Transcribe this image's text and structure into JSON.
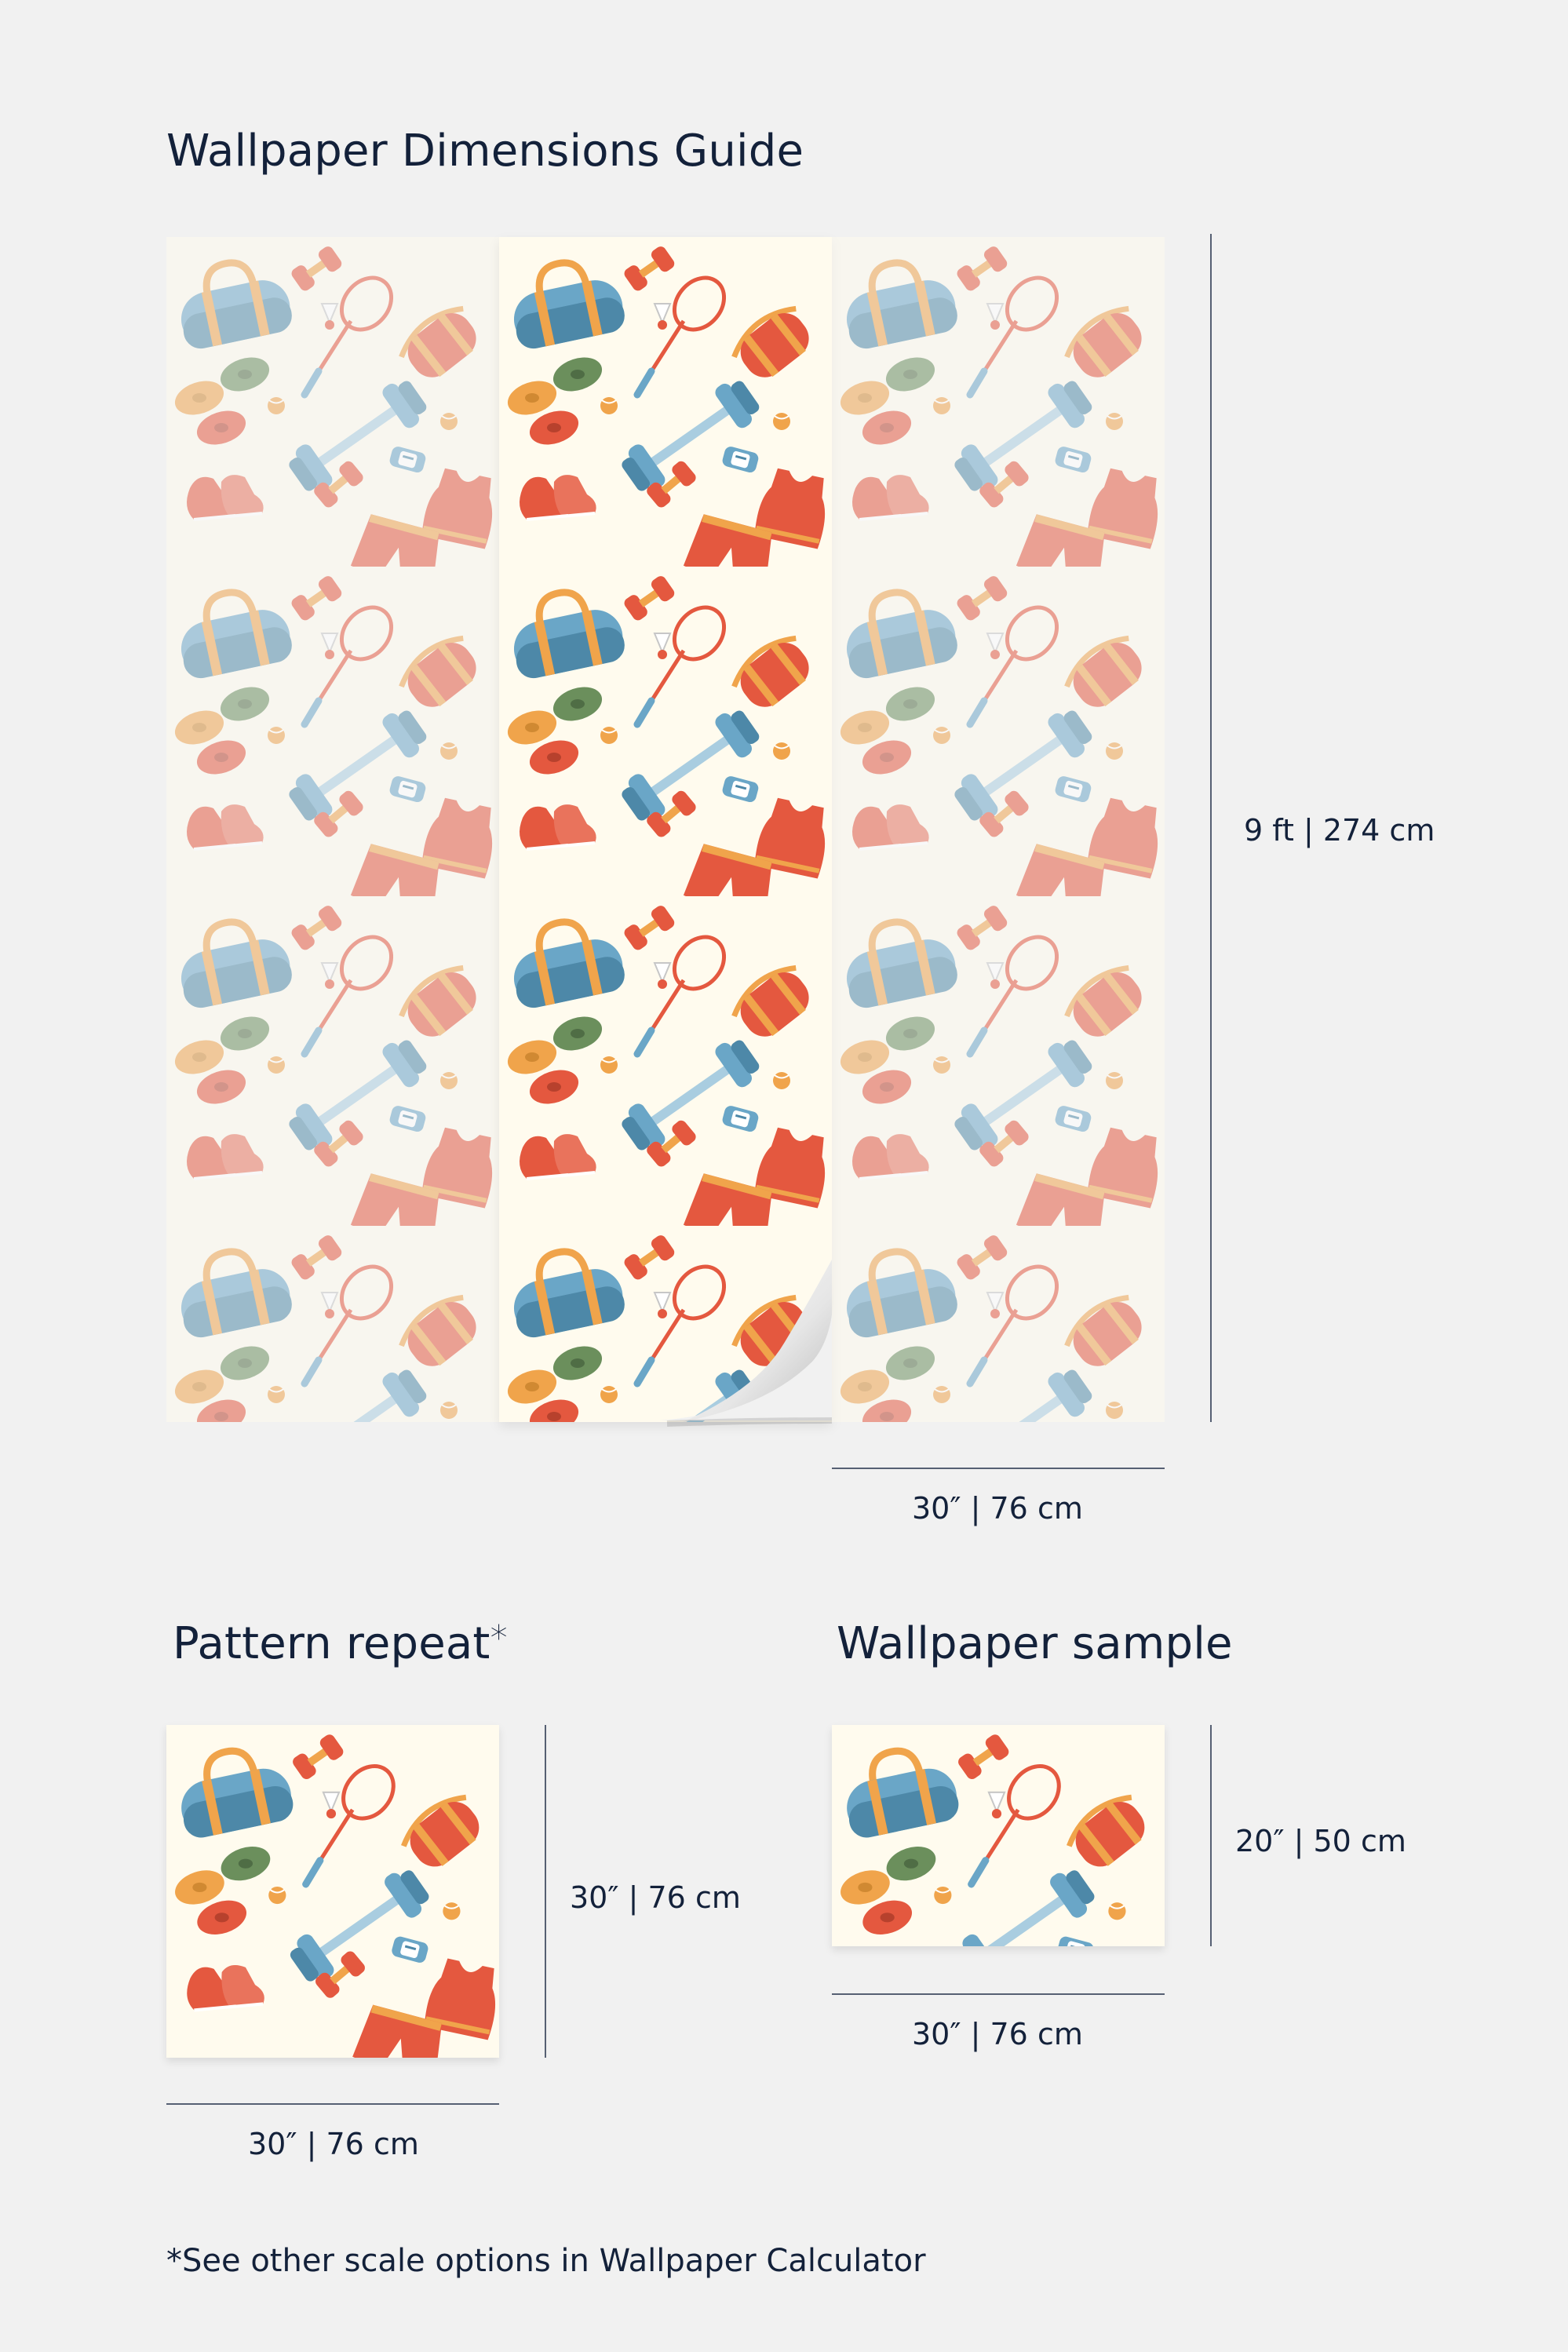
{
  "guide": {
    "title": "Wallpaper Dimensions Guide",
    "height_label": "9 ft | 274 cm",
    "width_label": "30″ | 76 cm"
  },
  "repeat": {
    "title": "Pattern repeat",
    "asterisk": "*",
    "height_label": "30″ | 76 cm",
    "width_label": "30″ | 76 cm"
  },
  "sample": {
    "title": "Wallpaper sample",
    "height_label": "20″ | 50 cm",
    "width_label": "30″ | 76 cm"
  },
  "footnote": "*See other scale options in Wallpaper Calculator",
  "colors": {
    "background": "#f1f1f1",
    "paper": "#fffbee",
    "text": "#13213a",
    "red": "#e4583f",
    "blue": "#6aa6c7",
    "orange": "#f0a44b",
    "green": "#6b8f5c"
  },
  "pattern_icons": [
    "duffel-bag-icon",
    "dumbbell-icon",
    "badminton-racket-icon",
    "shuttlecock-icon",
    "yoga-mat-icon",
    "weight-plates-icon",
    "barbell-icon",
    "ball-icon",
    "watch-icon",
    "sneakers-icon",
    "tank-top-icon",
    "shorts-icon"
  ]
}
